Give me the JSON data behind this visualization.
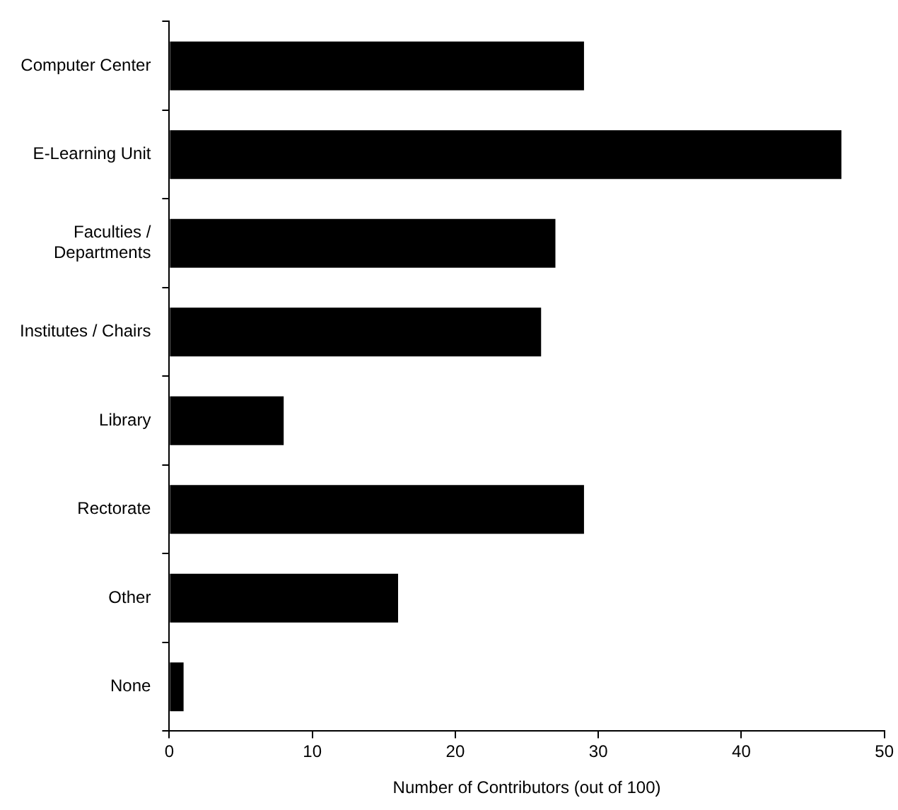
{
  "chart_data": {
    "type": "bar",
    "orientation": "horizontal",
    "xlabel": "Number of Contributors (out of 100)",
    "categories": [
      "Computer Center",
      "E-Learning Unit",
      "Faculties / Departments",
      "Institutes / Chairs",
      "Library",
      "Rectorate",
      "Other",
      "None"
    ],
    "values": [
      29,
      47,
      27,
      26,
      8,
      29,
      16,
      1
    ],
    "color": "#000000",
    "xlim": [
      0,
      50
    ],
    "xticks": [
      0,
      10,
      20,
      30,
      40,
      50
    ],
    "grid": false,
    "legend": false
  }
}
